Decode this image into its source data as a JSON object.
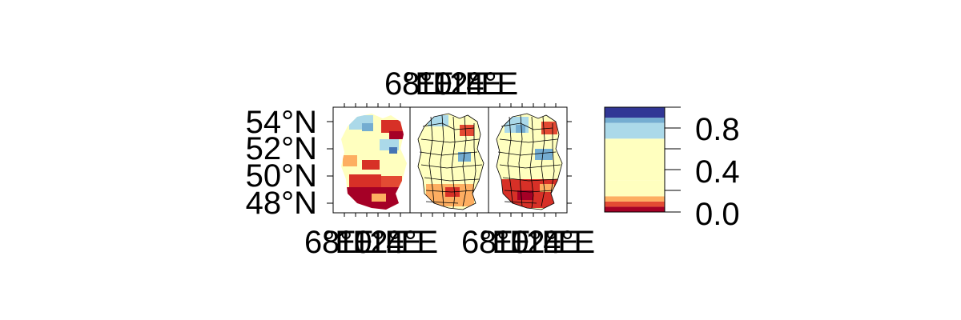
{
  "map": {
    "y_axis_labels": [
      "54°N",
      "52°N",
      "50°N",
      "48°N"
    ],
    "x_axis_labels": [
      "6°E",
      "8°E",
      "10°E",
      "12°E",
      "14°E"
    ],
    "panel_count": 3,
    "legend": {
      "tick_labels": [
        "0.8",
        "0.4",
        "0.0"
      ],
      "range": [
        0.0,
        1.0
      ],
      "colors": [
        "#a50026",
        "#e34a33",
        "#fdae61",
        "#ffffbf",
        "#ffffbf",
        "#abd9e9",
        "#74add1",
        "#313695"
      ],
      "breaks": [
        0.0,
        0.05,
        0.1,
        0.15,
        0.3,
        0.7,
        0.85,
        0.9,
        1.0
      ]
    },
    "colors": {
      "red_dark": "#a50026",
      "red": "#d73027",
      "orange": "#fdae61",
      "cream": "#ffffbf",
      "light_blue": "#abd9e9",
      "blue": "#4575b4",
      "navy": "#313695"
    }
  }
}
